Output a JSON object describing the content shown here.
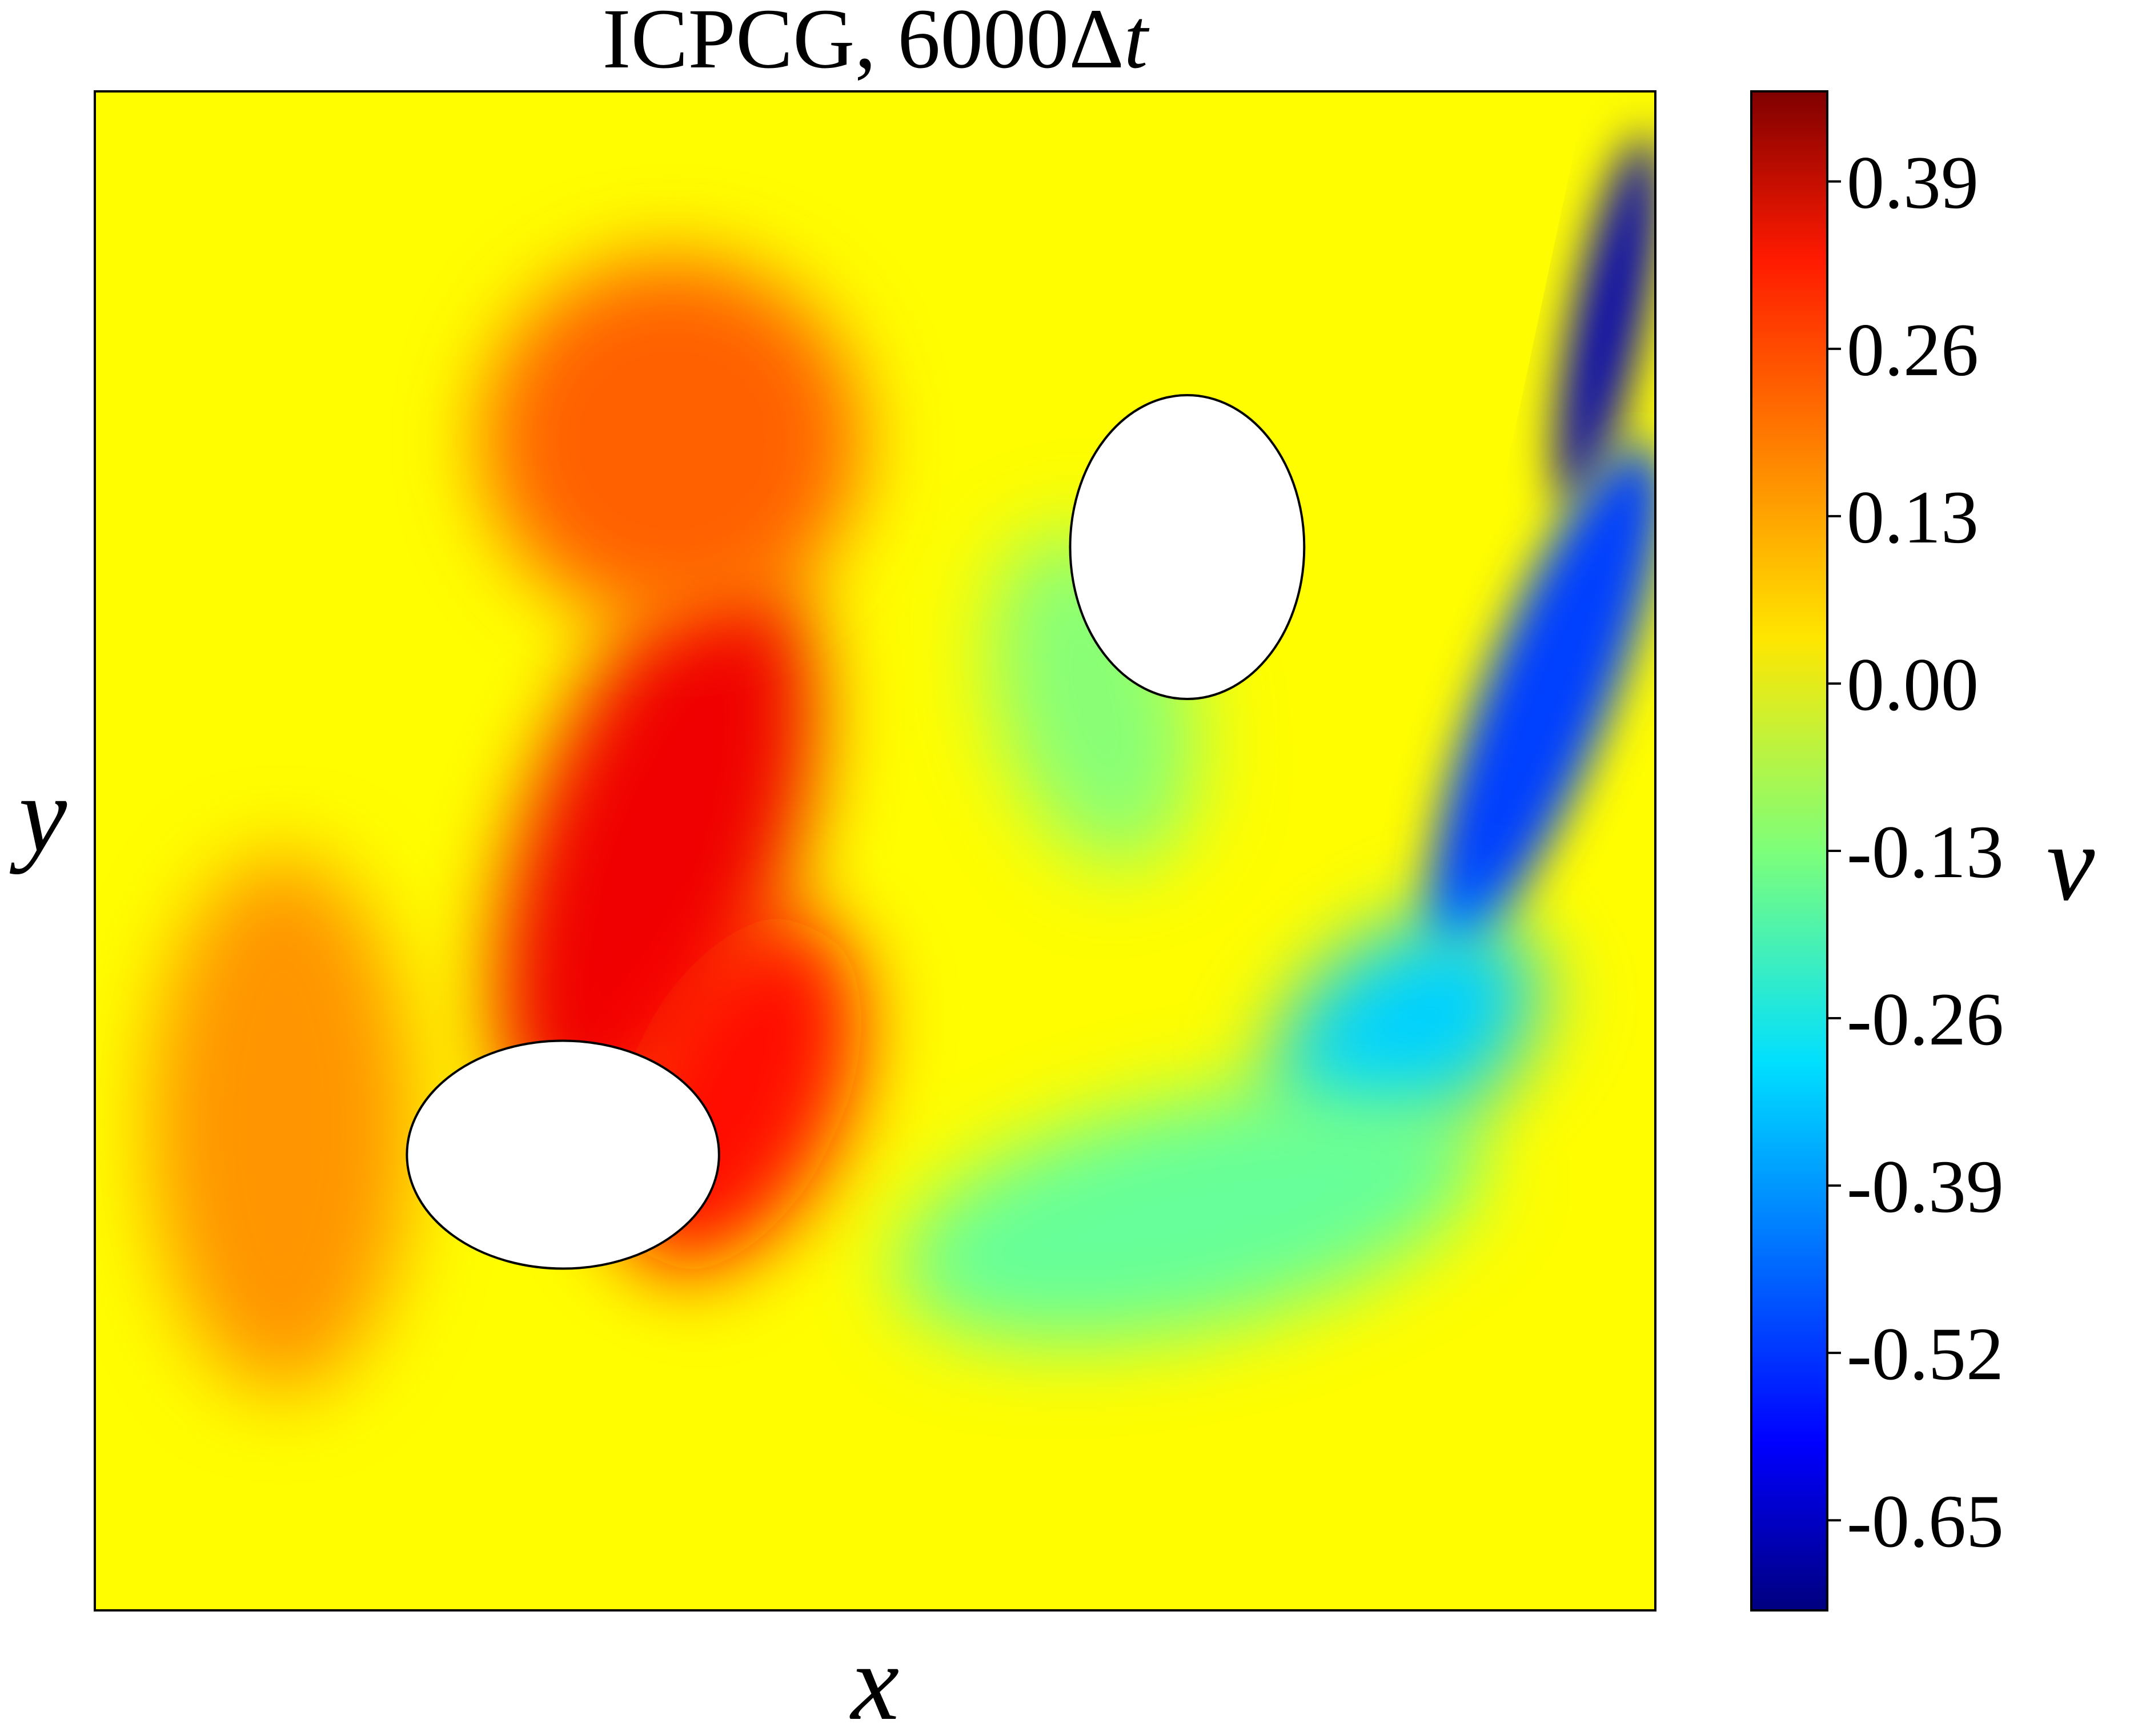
{
  "chart_data": {
    "type": "heatmap",
    "title": "ICPCG, 6000Δt",
    "title_parts": {
      "main": "ICPCG, 6000Δ",
      "italic": "t"
    },
    "xlabel": "x",
    "ylabel": "y",
    "colorbar": {
      "label": "v",
      "colormap": "jet",
      "range": [
        -0.72,
        0.46
      ],
      "ticks": [
        0.39,
        0.26,
        0.13,
        0.0,
        -0.13,
        -0.26,
        -0.39,
        -0.52,
        -0.65
      ],
      "tick_labels": [
        "0.39",
        "0.26",
        "0.13",
        "0.00",
        "-0.13",
        "-0.26",
        "-0.39",
        "-0.52",
        "-0.65"
      ]
    },
    "domain": {
      "x": [
        0,
        1
      ],
      "y": [
        0,
        1
      ]
    },
    "background_value": 0.02,
    "features": [
      {
        "name": "central-positive-band",
        "value": 0.33,
        "x": 0.36,
        "y": 0.5
      },
      {
        "name": "lower-band",
        "value": 0.3,
        "x": 0.41,
        "y": 0.34
      },
      {
        "name": "upper-band",
        "value": 0.2,
        "x": 0.37,
        "y": 0.77
      },
      {
        "name": "left-warm-patch",
        "value": 0.14,
        "x": 0.12,
        "y": 0.32
      },
      {
        "name": "wake-negative",
        "value": -0.12,
        "x": 0.64,
        "y": 0.6
      },
      {
        "name": "wall-jet-upper",
        "value": -0.66,
        "x": 0.97,
        "y": 0.85
      },
      {
        "name": "wall-jet-middle",
        "value": -0.5,
        "x": 0.93,
        "y": 0.6
      },
      {
        "name": "wall-jet-lower",
        "value": -0.33,
        "x": 0.84,
        "y": 0.38
      },
      {
        "name": "lower-right-arc",
        "value": -0.16,
        "x": 0.7,
        "y": 0.26
      }
    ],
    "obstacles": [
      {
        "name": "upper-right-ellipse",
        "cx": 0.7,
        "cy": 0.7,
        "rx": 0.075,
        "ry": 0.1
      },
      {
        "name": "lower-left-ellipse",
        "cx": 0.3,
        "cy": 0.3,
        "rx": 0.1,
        "ry": 0.075
      }
    ]
  }
}
